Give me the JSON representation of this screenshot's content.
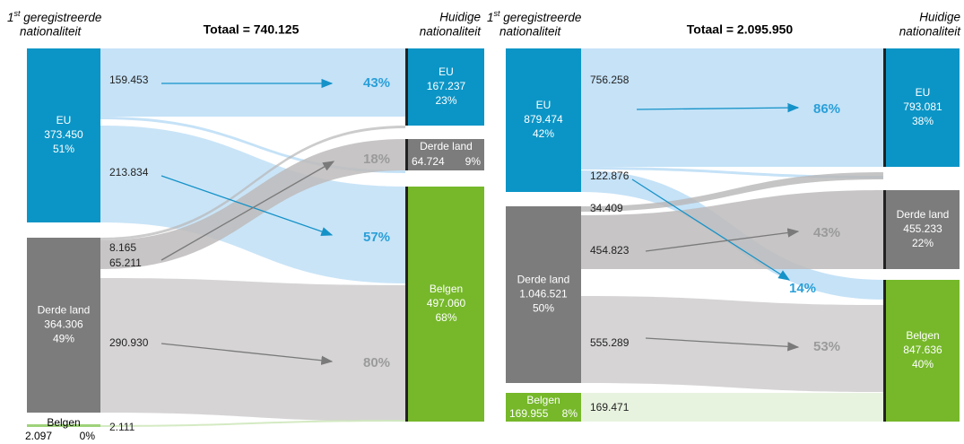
{
  "panels": [
    {
      "source_title": {
        "ordinal": "1",
        "suffix": "st",
        "line1": " geregistreerde",
        "line2": "nationaliteit"
      },
      "total": "Totaal = 740.125",
      "target_title": {
        "line1": "Huidige",
        "line2": "nationaliteit"
      },
      "sources": [
        {
          "label": "EU",
          "value": "373.450",
          "share": "51%"
        },
        {
          "label": "Derde land",
          "value": "364.306",
          "share": "49%"
        },
        {
          "label": "Belgen",
          "value": "2.097",
          "share": "0%"
        }
      ],
      "targets": [
        {
          "label": "EU",
          "value": "167.237",
          "share": "23%"
        },
        {
          "label": "Derde land",
          "value": "64.724",
          "share": "9%"
        },
        {
          "label": "Belgen",
          "value": "497.060",
          "share": "68%"
        }
      ],
      "flows": [
        "159.453",
        "213.834",
        "8.165",
        "65.211",
        "290.930",
        "2.111"
      ],
      "percents": [
        "43%",
        "57%",
        "18%",
        "80%"
      ]
    },
    {
      "source_title": {
        "ordinal": "1",
        "suffix": "st",
        "line1": " geregistreerde",
        "line2": "nationaliteit"
      },
      "total": "Totaal = 2.095.950",
      "target_title": {
        "line1": "Huidige",
        "line2": "nationaliteit"
      },
      "sources": [
        {
          "label": "EU",
          "value": "879.474",
          "share": "42%"
        },
        {
          "label": "Derde land",
          "value": "1.046.521",
          "share": "50%"
        },
        {
          "label": "Belgen",
          "value": "169.955",
          "share": "8%"
        }
      ],
      "targets": [
        {
          "label": "EU",
          "value": "793.081",
          "share": "38%"
        },
        {
          "label": "Derde land",
          "value": "455.233",
          "share": "22%"
        },
        {
          "label": "Belgen",
          "value": "847.636",
          "share": "40%"
        }
      ],
      "flows": [
        "756.258",
        "122.876",
        "34.409",
        "454.823",
        "555.289",
        "169.471"
      ],
      "percents": [
        "86%",
        "14%",
        "43%",
        "53%"
      ]
    }
  ]
}
